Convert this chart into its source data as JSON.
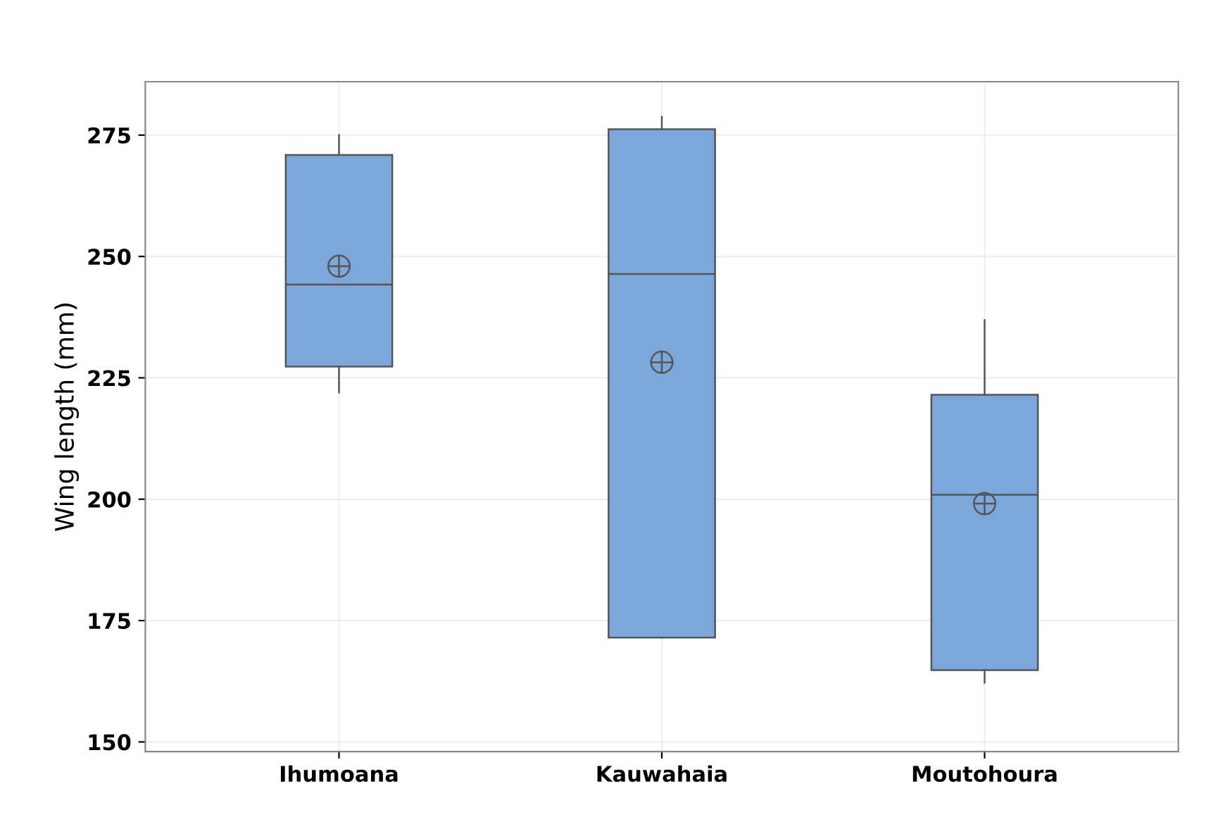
{
  "chart_data": {
    "type": "box",
    "ylabel": "Wing length (mm)",
    "categories": [
      "Ihumoana",
      "Kauwahaia",
      "Moutohoura"
    ],
    "boxes": [
      {
        "low": 222,
        "q1": 227.3,
        "median": 244.2,
        "q3": 270.9,
        "high": 275,
        "mean": 248
      },
      {
        "low": 171.5,
        "q1": 171.5,
        "median": 246.4,
        "q3": 276.2,
        "high": 278.8,
        "mean": 228.2
      },
      {
        "low": 162.2,
        "q1": 164.8,
        "median": 200.9,
        "q3": 221.5,
        "high": 236.9,
        "mean": 199.1
      }
    ],
    "color": "#7ba7da",
    "ylim": [
      148,
      286
    ],
    "yticks": [
      150,
      175,
      200,
      225,
      250,
      275
    ],
    "grid": true
  }
}
